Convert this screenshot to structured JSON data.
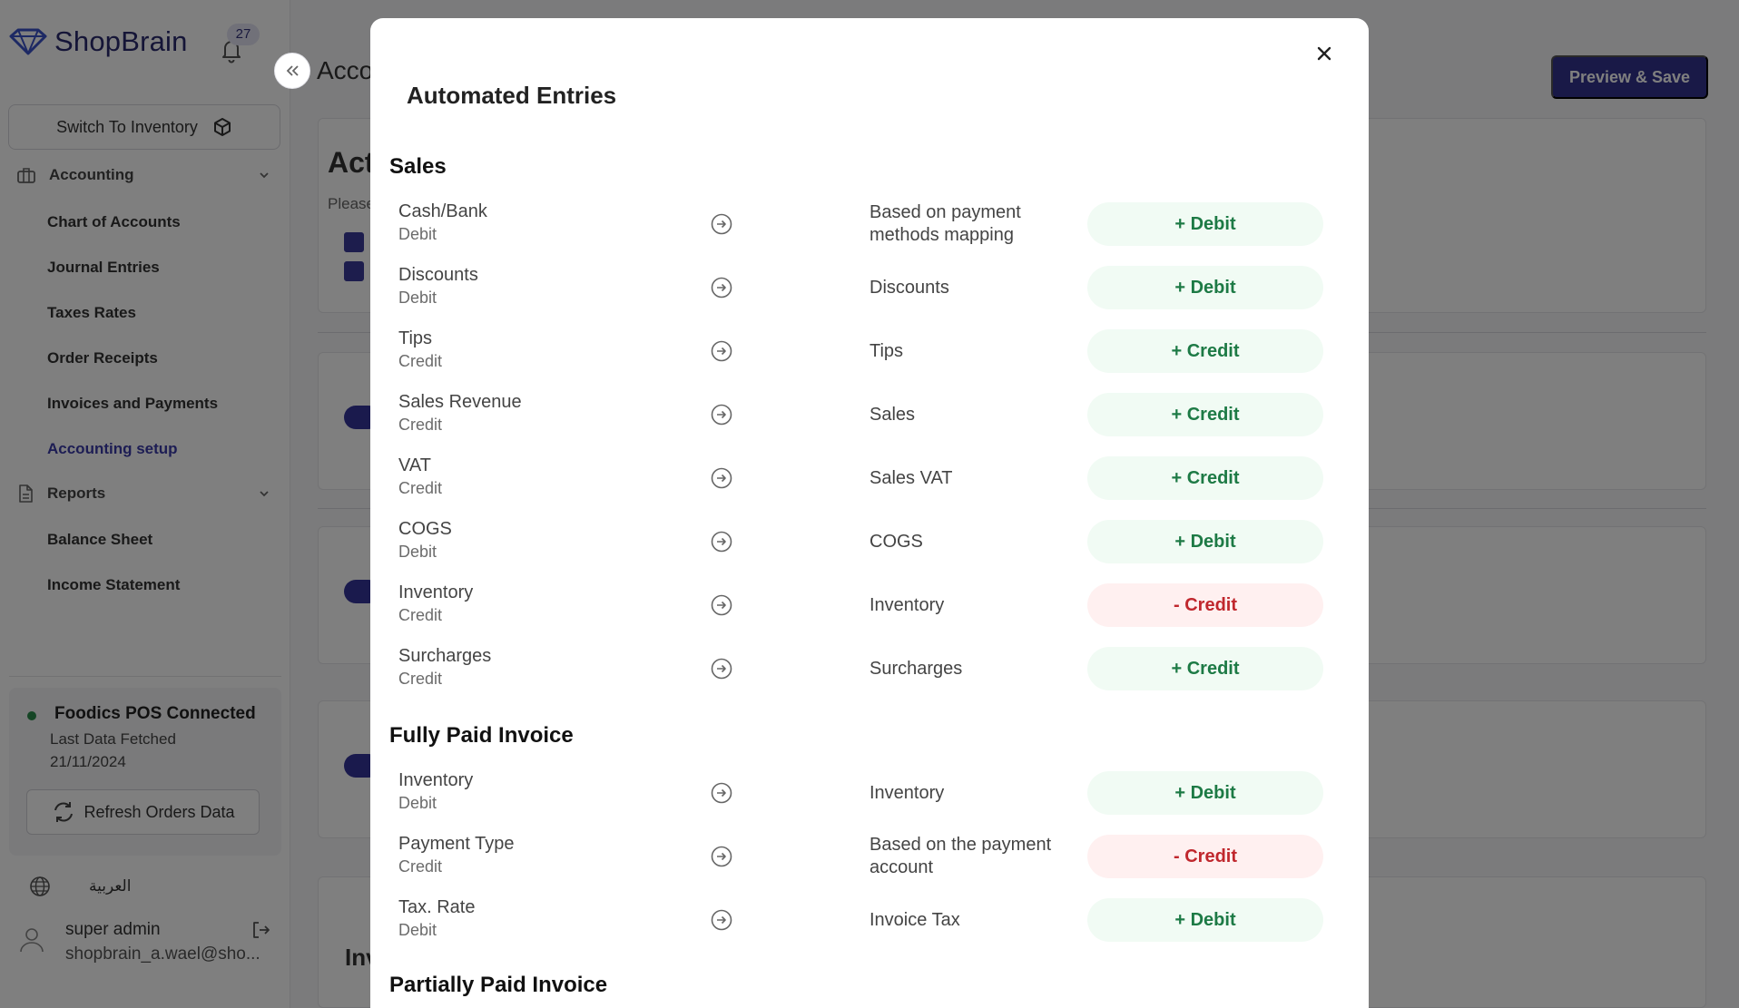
{
  "app": {
    "logo_text": "ShopBrain",
    "notification_count": "27"
  },
  "sidebar": {
    "switch_label": "Switch To Inventory",
    "groups": [
      {
        "label": "Accounting",
        "items": [
          "Chart of Accounts",
          "Journal Entries",
          "Taxes Rates",
          "Order Receipts",
          "Invoices and Payments",
          "Accounting setup"
        ]
      },
      {
        "label": "Reports",
        "items": [
          "Balance Sheet",
          "Income Statement"
        ]
      }
    ],
    "active_item": "Accounting setup",
    "status": {
      "title": "Foodics POS Connected",
      "line1": "Last Data Fetched",
      "line2": "21/11/2024",
      "refresh_label": "Refresh Orders Data"
    },
    "language_label": "العربية",
    "user": {
      "name": "super admin",
      "email": "shopbrain_a.wael@sho..."
    }
  },
  "main": {
    "title_partial": "Acco",
    "card_heading_partial": "Act",
    "card_text_partial": "Please",
    "preview_label": "Preview & Save",
    "inv_partial": "Inv"
  },
  "modal": {
    "title": "Automated Entries",
    "sections": [
      {
        "title": "Sales",
        "entries": [
          {
            "name": "Cash/Bank",
            "type": "Debit",
            "target": "Based on payment methods mapping",
            "effect": "+ Debit",
            "tone": "pos"
          },
          {
            "name": "Discounts",
            "type": "Debit",
            "target": "Discounts",
            "effect": "+ Debit",
            "tone": "pos"
          },
          {
            "name": "Tips",
            "type": "Credit",
            "target": "Tips",
            "effect": "+ Credit",
            "tone": "pos"
          },
          {
            "name": "Sales Revenue",
            "type": "Credit",
            "target": "Sales",
            "effect": "+ Credit",
            "tone": "pos"
          },
          {
            "name": "VAT",
            "type": "Credit",
            "target": "Sales VAT",
            "effect": "+ Credit",
            "tone": "pos"
          },
          {
            "name": "COGS",
            "type": "Debit",
            "target": "COGS",
            "effect": "+ Debit",
            "tone": "pos"
          },
          {
            "name": "Inventory",
            "type": "Credit",
            "target": "Inventory",
            "effect": "- Credit",
            "tone": "neg"
          },
          {
            "name": "Surcharges",
            "type": "Credit",
            "target": "Surcharges",
            "effect": "+ Credit",
            "tone": "pos"
          }
        ]
      },
      {
        "title": "Fully Paid Invoice",
        "entries": [
          {
            "name": "Inventory",
            "type": "Debit",
            "target": "Inventory",
            "effect": "+ Debit",
            "tone": "pos"
          },
          {
            "name": "Payment Type",
            "type": "Credit",
            "target": "Based on the payment account",
            "effect": "- Credit",
            "tone": "neg"
          },
          {
            "name": "Tax. Rate",
            "type": "Debit",
            "target": "Invoice Tax",
            "effect": "+ Debit",
            "tone": "pos"
          }
        ]
      },
      {
        "title": "Partially Paid Invoice",
        "entries": []
      }
    ]
  },
  "colors": {
    "brand": "#33338e",
    "positive": "#1d7a45",
    "negative": "#c0272d",
    "positive_bg": "#f1fbf4",
    "negative_bg": "#fff0f0"
  }
}
